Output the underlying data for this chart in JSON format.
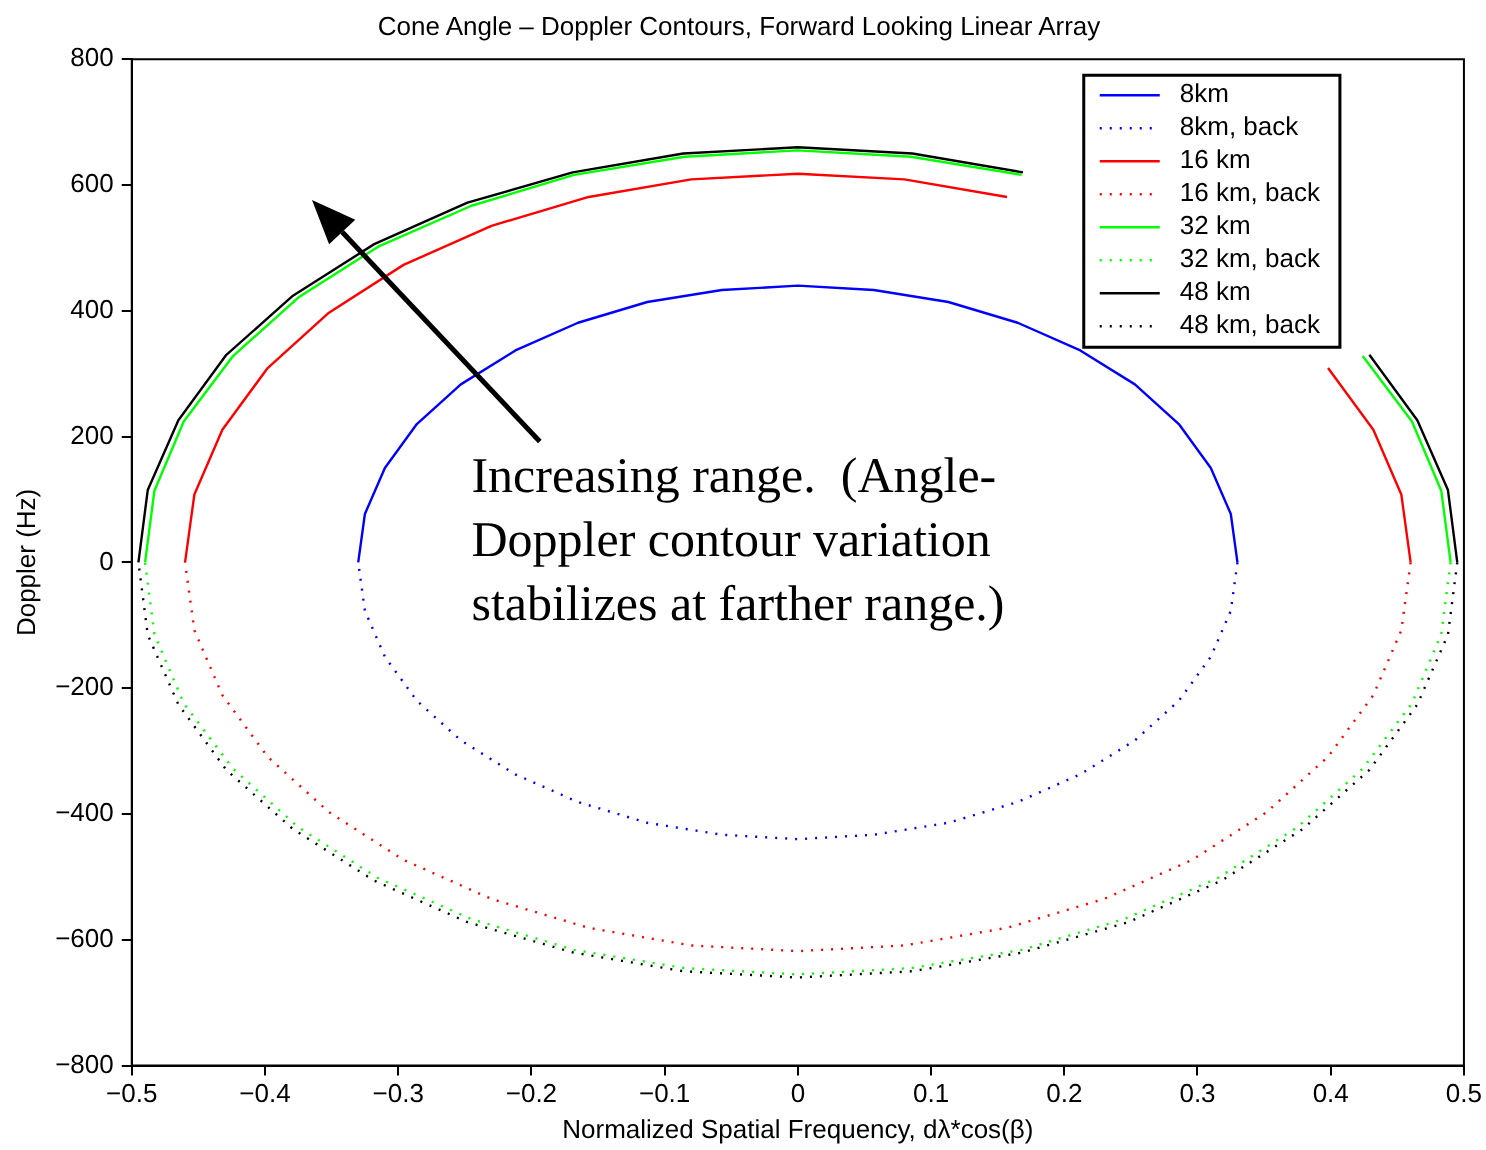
{
  "chart_data": {
    "type": "line",
    "title": "Cone Angle – Doppler Contours, Forward Looking Linear Array",
    "xlabel": "Normalized Spatial Frequency, dλ*cos(β)",
    "ylabel": "Doppler (Hz)",
    "xlim": [
      -0.5,
      0.5
    ],
    "xticks": [
      -0.5,
      -0.4,
      -0.3,
      -0.2,
      -0.1,
      0,
      0.1,
      0.2,
      0.3,
      0.4,
      0.5
    ],
    "ylim": [
      -800,
      800
    ],
    "yticks": [
      -800,
      -600,
      -400,
      -200,
      0,
      200,
      400,
      600,
      800
    ],
    "grid": false,
    "legend": "top right",
    "marker": "none",
    "annotations": [
      "Increasing range.  (Angle-Doppler contour variation stabilizes at farther range.)"
    ],
    "series": [
      {
        "name": "8km",
        "color": "#0000ff",
        "line_style": "solid",
        "x": [
          0.33,
          0.325,
          0.31,
          0.286,
          0.253,
          0.212,
          0.165,
          0.113,
          0.057,
          0,
          -0.057,
          -0.113,
          -0.165,
          -0.212,
          -0.253,
          -0.286,
          -0.31,
          -0.325,
          -0.33
        ],
        "values": [
          0,
          77,
          150,
          220,
          283,
          337,
          381,
          414,
          433,
          440,
          433,
          414,
          381,
          337,
          283,
          220,
          150,
          77,
          0
        ]
      },
      {
        "name": "8km, back",
        "color": "#0000ff",
        "line_style": "dotted",
        "x": [
          0.33,
          0.325,
          0.31,
          0.286,
          0.253,
          0.212,
          0.165,
          0.113,
          0.057,
          0,
          -0.057,
          -0.113,
          -0.165,
          -0.212,
          -0.253,
          -0.286,
          -0.31,
          -0.325,
          -0.33
        ],
        "values": [
          0,
          -77,
          -150,
          -220,
          -283,
          -337,
          -381,
          -414,
          -433,
          -440,
          -433,
          -414,
          -381,
          -337,
          -283,
          -220,
          -150,
          -77,
          0
        ]
      },
      {
        "name": "16 km",
        "color": "#ff0000",
        "line_style": "solid",
        "x": [
          0.46,
          0.453,
          0.432,
          0.398,
          0.352,
          0.296,
          0.23,
          0.157,
          0.08,
          0,
          -0.08,
          -0.157,
          -0.23,
          -0.296,
          -0.352,
          -0.398,
          -0.432,
          -0.453,
          -0.46
        ],
        "values": [
          0,
          108,
          211,
          309,
          null,
          null,
          null,
          581,
          609,
          618,
          609,
          581,
          535,
          473,
          397,
          309,
          211,
          108,
          0
        ]
      },
      {
        "name": "16 km, back",
        "color": "#ff0000",
        "line_style": "dotted",
        "x": [
          0.46,
          0.453,
          0.432,
          0.398,
          0.352,
          0.296,
          0.23,
          0.157,
          0.08,
          0,
          -0.08,
          -0.157,
          -0.23,
          -0.296,
          -0.352,
          -0.398,
          -0.432,
          -0.453,
          -0.46
        ],
        "values": [
          0,
          -108,
          -211,
          -309,
          -397,
          -473,
          -535,
          -581,
          -609,
          -618,
          -609,
          -581,
          -535,
          -473,
          -397,
          -309,
          -211,
          -108,
          0
        ]
      },
      {
        "name": "32 km",
        "color": "#00ff00",
        "line_style": "solid",
        "x": [
          0.49,
          0.483,
          0.461,
          0.424,
          0.375,
          0.315,
          0.245,
          0.168,
          0.085,
          0,
          -0.085,
          -0.168,
          -0.245,
          -0.315,
          -0.375,
          -0.424,
          -0.461,
          -0.483,
          -0.49
        ],
        "values": [
          0,
          114,
          224,
          328,
          null,
          null,
          null,
          616,
          645,
          655,
          645,
          616,
          567,
          502,
          421,
          328,
          224,
          114,
          0
        ]
      },
      {
        "name": "32 km, back",
        "color": "#00ff00",
        "line_style": "dotted",
        "x": [
          0.49,
          0.483,
          0.461,
          0.424,
          0.375,
          0.315,
          0.245,
          0.168,
          0.085,
          0,
          -0.085,
          -0.168,
          -0.245,
          -0.315,
          -0.375,
          -0.424,
          -0.461,
          -0.483,
          -0.49
        ],
        "values": [
          0,
          -114,
          -224,
          -328,
          -421,
          -502,
          -567,
          -616,
          -645,
          -655,
          -645,
          -616,
          -567,
          -502,
          -421,
          -328,
          -224,
          -114,
          0
        ]
      },
      {
        "name": "48 km",
        "color": "#000000",
        "line_style": "solid",
        "x": [
          0.495,
          0.488,
          0.465,
          0.429,
          0.379,
          0.318,
          0.248,
          0.169,
          0.086,
          0,
          -0.086,
          -0.169,
          -0.248,
          -0.318,
          -0.379,
          -0.429,
          -0.465,
          -0.488,
          -0.495
        ],
        "values": [
          0,
          115,
          226,
          330,
          null,
          null,
          null,
          620,
          650,
          660,
          650,
          620,
          572,
          506,
          424,
          330,
          226,
          115,
          0
        ]
      },
      {
        "name": "48 km, back",
        "color": "#000000",
        "line_style": "dotted",
        "x": [
          0.495,
          0.488,
          0.465,
          0.429,
          0.379,
          0.318,
          0.248,
          0.169,
          0.086,
          0,
          -0.086,
          -0.169,
          -0.248,
          -0.318,
          -0.379,
          -0.429,
          -0.465,
          -0.488,
          -0.495
        ],
        "values": [
          0,
          -115,
          -226,
          -330,
          -424,
          -506,
          -572,
          -620,
          -650,
          -660,
          -650,
          -620,
          -572,
          -506,
          -424,
          -330,
          -226,
          -115,
          0
        ]
      }
    ]
  }
}
